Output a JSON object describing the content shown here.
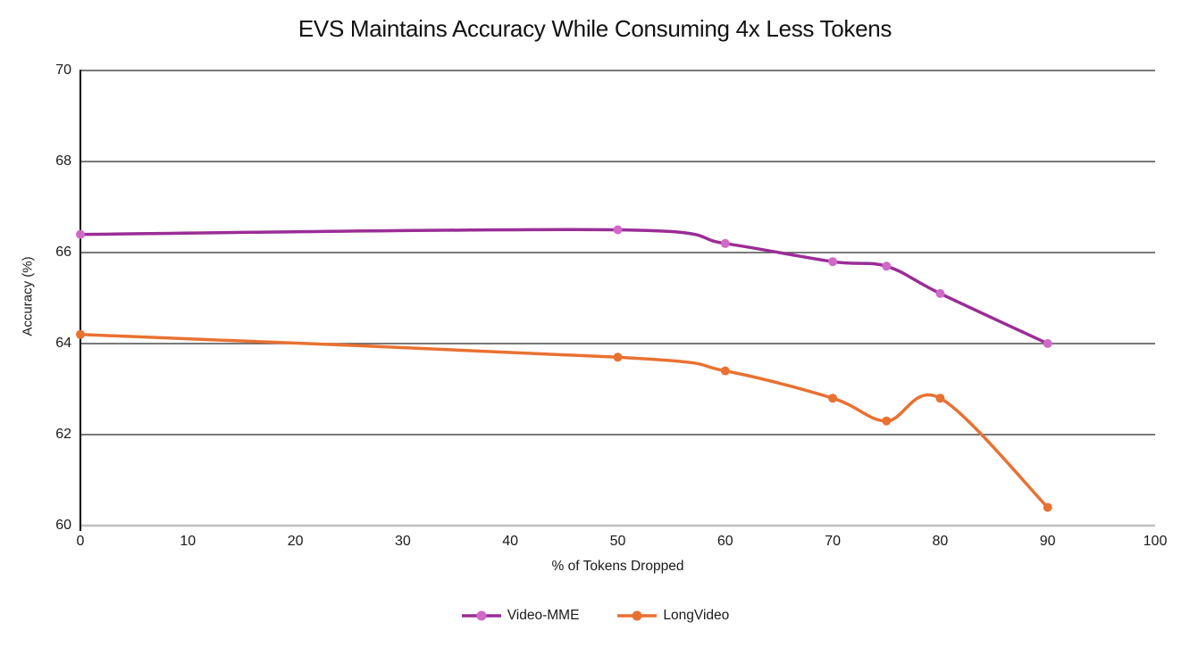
{
  "title": "EVS Maintains Accuracy While Consuming 4x Less Tokens",
  "chart_data": {
    "type": "line",
    "smooth": true,
    "x": [
      0,
      50,
      60,
      70,
      75,
      80,
      90
    ],
    "series": [
      {
        "name": "Video-MME",
        "values": [
          66.4,
          66.5,
          66.2,
          65.8,
          65.7,
          65.1,
          64.0
        ],
        "line_color": "#9A2D96",
        "marker_color": "#D169C9"
      },
      {
        "name": "LongVideo",
        "values": [
          64.2,
          63.7,
          63.4,
          62.8,
          62.3,
          62.8,
          60.4
        ],
        "line_color": "#E97132",
        "marker_color": "#E97132"
      }
    ],
    "xlabel": "% of Tokens Dropped",
    "ylabel": "Accuracy (%)",
    "xlim": [
      0,
      100
    ],
    "ylim": [
      60,
      70
    ],
    "x_ticks": [
      0,
      10,
      20,
      30,
      40,
      50,
      60,
      70,
      80,
      90,
      100
    ],
    "y_ticks": [
      60,
      62,
      64,
      66,
      68,
      70
    ],
    "grid": "horizontal gridlines at every y tick, top border included",
    "legend_position": "bottom"
  },
  "colors": {
    "gridline": "#4D4D4D",
    "baseline": "#BFBFBF",
    "y_axis_line": "#000000",
    "text": "#1A1A1A",
    "background": "#FFFFFF"
  }
}
